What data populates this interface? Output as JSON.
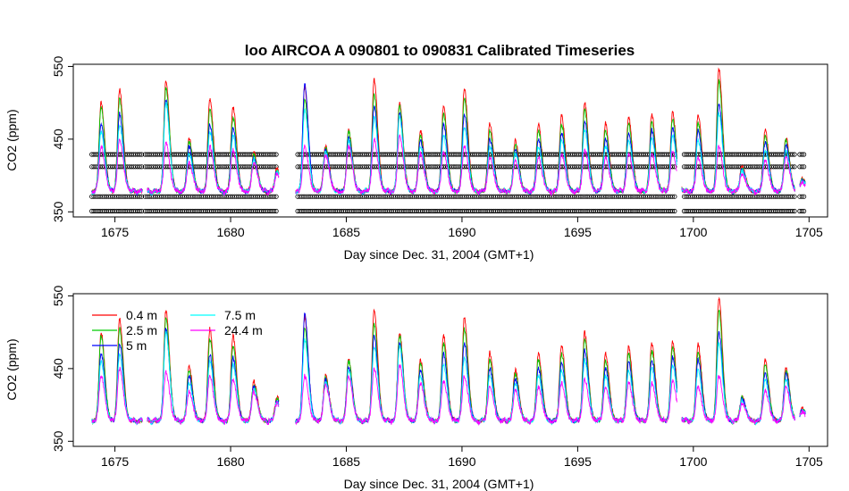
{
  "chart_data": [
    {
      "type": "line",
      "title": "loo   AIRCOA  A    090801  to  090831   Calibrated Timeseries",
      "xlabel": "Day since Dec. 31, 2004 (GMT+1)",
      "ylabel": "CO2 (ppm)",
      "xlim": [
        1673.2,
        1705.8
      ],
      "ylim": [
        343,
        553
      ],
      "xticks": [
        "1675",
        "1680",
        "1685",
        "1690",
        "1695",
        "1700",
        "1705"
      ],
      "yticks": [
        "350",
        "450",
        "550"
      ],
      "x_tick_values": [
        1675,
        1680,
        1685,
        1690,
        1695,
        1700,
        1705
      ],
      "y_tick_values": [
        350,
        450,
        550
      ],
      "calibration_levels": [
        351,
        371,
        412,
        429
      ],
      "calibration_days": [
        [
          1674.0,
          1676.2
        ],
        [
          1676.3,
          1682.0
        ],
        [
          1682.9,
          1699.2
        ],
        [
          1699.6,
          1704.4
        ],
        [
          1704.6,
          1704.8
        ]
      ],
      "series": [
        {
          "name": "0.4 m",
          "color": "#ff0000",
          "offset": 0.0
        },
        {
          "name": "2.5 m",
          "color": "#00cc00",
          "offset": 0.0
        },
        {
          "name": "5 m",
          "color": "#0000ff",
          "offset": 0.0
        },
        {
          "name": "7.5 m",
          "color": "#00ffff",
          "offset": 0.0
        },
        {
          "name": "24.4 m",
          "color": "#ff00ff",
          "offset": 0.0
        }
      ],
      "daily_peaks": [
        {
          "day": 1674.4,
          "values": [
            500,
            495,
            470,
            460,
            440
          ]
        },
        {
          "day": 1675.2,
          "values": [
            518,
            505,
            485,
            470,
            450
          ]
        },
        {
          "day": 1677.2,
          "values": [
            530,
            520,
            505,
            500,
            445
          ]
        },
        {
          "day": 1678.2,
          "values": [
            452,
            448,
            440,
            430,
            418
          ]
        },
        {
          "day": 1679.1,
          "values": [
            505,
            490,
            470,
            460,
            440
          ]
        },
        {
          "day": 1680.1,
          "values": [
            495,
            480,
            465,
            455,
            435
          ]
        },
        {
          "day": 1681.0,
          "values": [
            432,
            428,
            425,
            422,
            418
          ]
        },
        {
          "day": 1682.0,
          "values": [
            410,
            408,
            406,
            404,
            402
          ]
        },
        {
          "day": 1683.2,
          "values": [
            522,
            505,
            525,
            490,
            440
          ]
        },
        {
          "day": 1684.1,
          "values": [
            440,
            438,
            435,
            432,
            428
          ]
        },
        {
          "day": 1685.1,
          "values": [
            462,
            460,
            452,
            448,
            440
          ]
        },
        {
          "day": 1686.2,
          "values": [
            532,
            510,
            495,
            480,
            450
          ]
        },
        {
          "day": 1687.3,
          "values": [
            500,
            495,
            485,
            480,
            455
          ]
        },
        {
          "day": 1688.2,
          "values": [
            462,
            456,
            448,
            440,
            430
          ]
        },
        {
          "day": 1689.2,
          "values": [
            495,
            485,
            470,
            455,
            432
          ]
        },
        {
          "day": 1690.1,
          "values": [
            520,
            505,
            485,
            465,
            440
          ]
        },
        {
          "day": 1691.2,
          "values": [
            472,
            462,
            450,
            440,
            425
          ]
        },
        {
          "day": 1692.3,
          "values": [
            448,
            442,
            436,
            430,
            420
          ]
        },
        {
          "day": 1693.3,
          "values": [
            470,
            462,
            450,
            440,
            425
          ]
        },
        {
          "day": 1694.3,
          "values": [
            482,
            470,
            458,
            448,
            430
          ]
        },
        {
          "day": 1695.3,
          "values": [
            500,
            490,
            475,
            462,
            435
          ]
        },
        {
          "day": 1696.2,
          "values": [
            472,
            462,
            450,
            440,
            425
          ]
        },
        {
          "day": 1697.2,
          "values": [
            480,
            470,
            458,
            448,
            430
          ]
        },
        {
          "day": 1698.2,
          "values": [
            484,
            474,
            462,
            450,
            430
          ]
        },
        {
          "day": 1699.1,
          "values": [
            486,
            478,
            466,
            455,
            432
          ]
        },
        {
          "day": 1700.2,
          "values": [
            484,
            472,
            462,
            448,
            425
          ]
        },
        {
          "day": 1701.1,
          "values": [
            547,
            530,
            500,
            485,
            440
          ]
        },
        {
          "day": 1702.1,
          "values": [
            412,
            410,
            408,
            406,
            402
          ]
        },
        {
          "day": 1703.1,
          "values": [
            462,
            455,
            445,
            435,
            420
          ]
        },
        {
          "day": 1704.0,
          "values": [
            452,
            448,
            442,
            435,
            425
          ]
        },
        {
          "day": 1704.7,
          "values": [
            395,
            394,
            393,
            392,
            390
          ]
        }
      ],
      "baseline": 378,
      "data_gaps": [
        [
          1676.2,
          1676.4
        ],
        [
          1682.1,
          1682.8
        ],
        [
          1699.3,
          1699.5
        ],
        [
          1704.4,
          1704.6
        ]
      ],
      "grid": false
    },
    {
      "type": "line",
      "title": "",
      "xlabel": "Day since Dec. 31, 2004 (GMT+1)",
      "ylabel": "CO2 (ppm)",
      "xlim": [
        1673.2,
        1705.8
      ],
      "ylim": [
        343,
        553
      ],
      "xticks": [
        "1675",
        "1680",
        "1685",
        "1690",
        "1695",
        "1700",
        "1705"
      ],
      "yticks": [
        "350",
        "450",
        "550"
      ],
      "legend_placement": "top-left",
      "legend": [
        "0.4 m",
        "2.5 m",
        "5 m",
        "7.5 m",
        "24.4 m"
      ],
      "grid": false
    }
  ]
}
